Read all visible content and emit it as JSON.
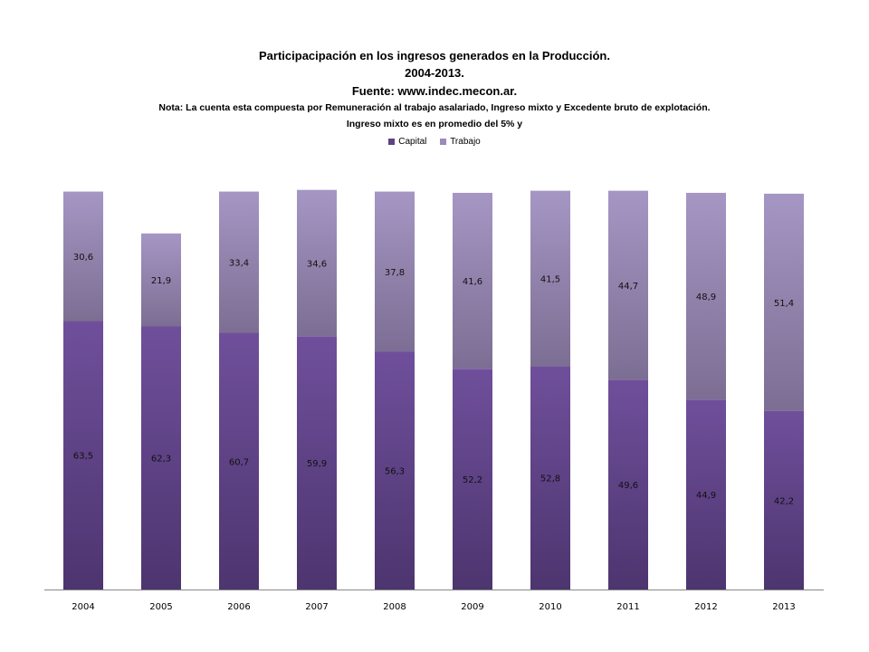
{
  "chart_data": {
    "type": "bar",
    "stacked": true,
    "title": "Participacipación en los ingresos generados en la Producción.",
    "subtitle_lines": [
      "2004-2013.",
      "Fuente: www.indec.mecon.ar.",
      "Nota: La cuenta esta compuesta por Remuneración  al trabajo asalariado,  Ingreso mixto y Excedente bruto de explotación.",
      "Ingreso mixto es en promedio del 5% y"
    ],
    "categories": [
      "2004",
      "2005",
      "2006",
      "2007",
      "2008",
      "2009",
      "2010",
      "2011",
      "2012",
      "2013"
    ],
    "series": [
      {
        "name": "Capital",
        "values": [
          63.5,
          62.3,
          60.7,
          59.9,
          56.3,
          52.2,
          52.8,
          49.6,
          44.9,
          42.2
        ],
        "labels": [
          "63,5",
          "62,3",
          "60,7",
          "59,9",
          "56,3",
          "52,2",
          "52,8",
          "49,6",
          "44,9",
          "42,2"
        ],
        "color": "#5e4285"
      },
      {
        "name": "Trabajo",
        "values": [
          30.6,
          21.9,
          33.4,
          34.6,
          37.8,
          41.6,
          41.5,
          44.7,
          48.9,
          51.4
        ],
        "labels": [
          "30,6",
          "21,9",
          "33,4",
          "34,6",
          "37,8",
          "41,6",
          "41,5",
          "44,7",
          "48,9",
          "51,4"
        ],
        "color": "#9b8bb8"
      }
    ],
    "ylim": [
      0,
      100
    ],
    "y_axis_visible": false,
    "grid": false,
    "legend": "top"
  }
}
